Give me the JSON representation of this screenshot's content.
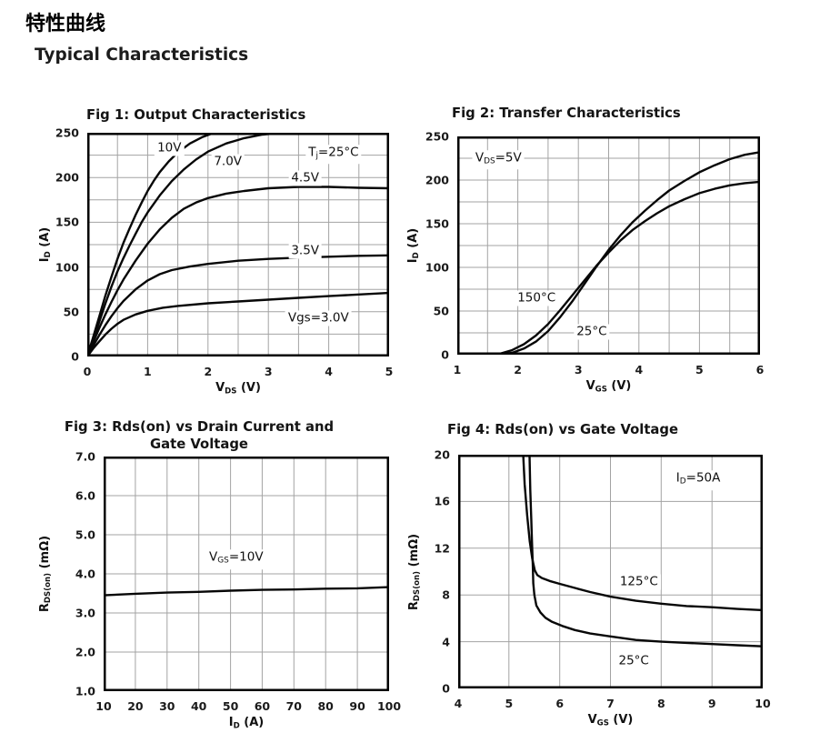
{
  "header": {
    "title_cn": "特性曲线",
    "section_title": "Typical Characteristics"
  },
  "chart_data": [
    {
      "name": "fig1-output-characteristics",
      "type": "line",
      "title": "Fig 1: Output Characteristics",
      "xlabel": [
        {
          "t": "V"
        },
        {
          "t": "DS",
          "sub": true
        },
        {
          "t": " (V)"
        }
      ],
      "ylabel": [
        {
          "t": "I"
        },
        {
          "t": "D",
          "sub": true
        },
        {
          "t": " (A)"
        }
      ],
      "xlim": [
        0,
        5
      ],
      "ylim": [
        0,
        250
      ],
      "grid_dx": 0.5,
      "grid_dy": 25,
      "grid": "on",
      "legend": "none",
      "xticks": [
        {
          "v": 0,
          "label": "0"
        },
        {
          "v": 1,
          "label": "1"
        },
        {
          "v": 2,
          "label": "2"
        },
        {
          "v": 3,
          "label": "3"
        },
        {
          "v": 4,
          "label": "4"
        },
        {
          "v": 5,
          "label": "5"
        }
      ],
      "yticks": [
        {
          "v": 0,
          "label": "0"
        },
        {
          "v": 50,
          "label": "50"
        },
        {
          "v": 100,
          "label": "100"
        },
        {
          "v": 150,
          "label": "150"
        },
        {
          "v": 200,
          "label": "200"
        },
        {
          "v": 250,
          "label": "250"
        }
      ],
      "annotations": [
        {
          "name": "tj-condition",
          "parts": [
            {
              "t": "T"
            },
            {
              "t": "j",
              "sub": true
            },
            {
              "t": "=25°C"
            }
          ],
          "ax": 4.08,
          "ay": 226
        }
      ],
      "series": [
        {
          "name": "vgs-10v",
          "label": {
            "parts": [
              {
                "t": "10V"
              }
            ],
            "ax": 1.36,
            "ay": 233
          },
          "x": [
            0,
            0.1,
            0.2,
            0.3,
            0.4,
            0.5,
            0.6,
            0.7,
            0.8,
            0.9,
            1.0,
            1.1,
            1.2,
            1.35,
            1.5,
            1.7,
            1.9,
            2.1,
            2.3
          ],
          "y": [
            0,
            22,
            45,
            68,
            89,
            109,
            127,
            143,
            158,
            172,
            185,
            196,
            206,
            218,
            228,
            238,
            245,
            250,
            256
          ]
        },
        {
          "name": "vgs-7v",
          "label": {
            "parts": [
              {
                "t": "7.0V"
              }
            ],
            "ax": 2.33,
            "ay": 218
          },
          "x": [
            0,
            0.1,
            0.2,
            0.3,
            0.4,
            0.5,
            0.6,
            0.7,
            0.8,
            0.9,
            1.0,
            1.2,
            1.4,
            1.6,
            1.8,
            2.0,
            2.3,
            2.6,
            2.9,
            3.2,
            3.45
          ],
          "y": [
            0,
            19,
            39,
            59,
            78,
            95,
            110,
            124,
            137,
            150,
            161,
            180,
            196,
            209,
            220,
            229,
            238,
            244,
            248,
            250,
            253
          ]
        },
        {
          "name": "vgs-4p5v",
          "label": {
            "parts": [
              {
                "t": "4.5V"
              }
            ],
            "ax": 3.61,
            "ay": 199
          },
          "x": [
            0,
            0.1,
            0.2,
            0.3,
            0.4,
            0.5,
            0.6,
            0.8,
            1.0,
            1.2,
            1.4,
            1.6,
            1.8,
            2.0,
            2.3,
            2.6,
            3.0,
            3.5,
            4.0,
            4.5,
            5.0
          ],
          "y": [
            0,
            16,
            32,
            47,
            61,
            74,
            86,
            107,
            126,
            142,
            155,
            165,
            172,
            177,
            182,
            185,
            188,
            189.5,
            189.5,
            188.5,
            188
          ]
        },
        {
          "name": "vgs-3p5v",
          "label": {
            "parts": [
              {
                "t": "3.5V"
              }
            ],
            "ax": 3.61,
            "ay": 118
          },
          "x": [
            0,
            0.1,
            0.2,
            0.3,
            0.4,
            0.5,
            0.6,
            0.8,
            1.0,
            1.2,
            1.4,
            1.7,
            2.0,
            2.5,
            3.0,
            3.5,
            4.0,
            4.5,
            5.0
          ],
          "y": [
            0,
            12,
            24,
            35,
            45,
            54,
            62,
            75,
            85,
            92,
            96.5,
            100.5,
            103.5,
            107,
            109,
            110.5,
            111.5,
            112.5,
            113
          ]
        },
        {
          "name": "vgs-3v",
          "label": {
            "parts": [
              {
                "t": "Vgs=3.0V"
              }
            ],
            "ax": 3.83,
            "ay": 43
          },
          "x": [
            0,
            0.1,
            0.2,
            0.3,
            0.4,
            0.5,
            0.6,
            0.8,
            1.0,
            1.25,
            1.5,
            2.0,
            2.5,
            3.0,
            3.5,
            4.0,
            4.5,
            5.0
          ],
          "y": [
            0,
            9,
            17,
            24.5,
            31,
            36.5,
            41,
            47,
            51,
            54.5,
            56.5,
            59.5,
            61.5,
            63.5,
            65.5,
            67.5,
            69.3,
            71
          ]
        }
      ]
    },
    {
      "name": "fig2-transfer-characteristics",
      "type": "line",
      "title": "Fig 2: Transfer Characteristics",
      "xlabel": [
        {
          "t": "V"
        },
        {
          "t": "GS",
          "sub": true
        },
        {
          "t": " (V)"
        }
      ],
      "ylabel": [
        {
          "t": "I"
        },
        {
          "t": "D",
          "sub": true
        },
        {
          "t": " (A)"
        }
      ],
      "xlim": [
        1,
        6
      ],
      "ylim": [
        0,
        250
      ],
      "grid_dx": 0.5,
      "grid_dy": 25,
      "grid": "on",
      "legend": "none",
      "xticks": [
        {
          "v": 1,
          "label": "1"
        },
        {
          "v": 2,
          "label": "2"
        },
        {
          "v": 3,
          "label": "3"
        },
        {
          "v": 4,
          "label": "4"
        },
        {
          "v": 5,
          "label": "5"
        },
        {
          "v": 6,
          "label": "6"
        }
      ],
      "yticks": [
        {
          "v": 0,
          "label": "0"
        },
        {
          "v": 50,
          "label": "50"
        },
        {
          "v": 100,
          "label": "100"
        },
        {
          "v": 150,
          "label": "150"
        },
        {
          "v": 200,
          "label": "200"
        },
        {
          "v": 250,
          "label": "250"
        }
      ],
      "annotations": [
        {
          "name": "vds-condition",
          "parts": [
            {
              "t": "V"
            },
            {
              "t": "DS",
              "sub": true
            },
            {
              "t": "=5V"
            }
          ],
          "ax": 1.68,
          "ay": 223
        }
      ],
      "series": [
        {
          "name": "150c",
          "label": {
            "parts": [
              {
                "t": "150°C"
              }
            ],
            "ax": 2.31,
            "ay": 65
          },
          "x": [
            1,
            1.5,
            1.7,
            1.9,
            2.1,
            2.3,
            2.5,
            2.7,
            2.9,
            3.1,
            3.3,
            3.5,
            3.7,
            3.9,
            4.1,
            4.3,
            4.5,
            4.75,
            5.0,
            5.25,
            5.5,
            5.75,
            6.0
          ],
          "y": [
            0.5,
            0.5,
            1,
            5,
            12,
            22,
            35,
            51,
            68,
            85,
            102,
            117,
            131,
            143,
            153,
            162,
            170,
            178,
            185,
            190,
            194,
            196.5,
            198
          ]
        },
        {
          "name": "25c",
          "label": {
            "parts": [
              {
                "t": "25°C"
              }
            ],
            "ax": 3.22,
            "ay": 26
          },
          "x": [
            1,
            1.6,
            1.9,
            2.1,
            2.3,
            2.5,
            2.7,
            2.9,
            3.1,
            3.3,
            3.5,
            3.7,
            3.9,
            4.1,
            4.3,
            4.5,
            4.75,
            5.0,
            5.25,
            5.5,
            5.75,
            6.0
          ],
          "y": [
            0.3,
            0.3,
            2,
            7,
            15,
            27,
            43,
            61,
            81,
            101,
            120,
            137,
            152,
            165,
            177,
            188,
            199,
            209,
            217,
            224,
            229,
            232
          ]
        }
      ]
    },
    {
      "name": "fig3-rdson-vs-drain-current",
      "type": "line",
      "title": "Fig 3: Rds(on) vs Drain Current and Gate Voltage",
      "title_lines": [
        "Fig 3: Rds(on) vs Drain Current and",
        "Gate Voltage"
      ],
      "xlabel": [
        {
          "t": "I"
        },
        {
          "t": "D",
          "sub": true
        },
        {
          "t": " (A)"
        }
      ],
      "ylabel": [
        {
          "t": "R"
        },
        {
          "t": "DS(on)",
          "sub": true
        },
        {
          "t": " (mΩ)"
        }
      ],
      "xlim": [
        10,
        100
      ],
      "ylim": [
        1,
        7
      ],
      "grid_dx": 10,
      "grid_dy": 1,
      "grid": "on",
      "legend": "none",
      "xticks": [
        {
          "v": 10,
          "label": "10"
        },
        {
          "v": 20,
          "label": "20"
        },
        {
          "v": 30,
          "label": "30"
        },
        {
          "v": 40,
          "label": "40"
        },
        {
          "v": 50,
          "label": "50"
        },
        {
          "v": 60,
          "label": "60"
        },
        {
          "v": 70,
          "label": "70"
        },
        {
          "v": 80,
          "label": "80"
        },
        {
          "v": 90,
          "label": "90"
        },
        {
          "v": 100,
          "label": "100"
        }
      ],
      "yticks": [
        {
          "v": 1,
          "label": "1.0"
        },
        {
          "v": 2,
          "label": "2.0"
        },
        {
          "v": 3,
          "label": "3.0"
        },
        {
          "v": 4,
          "label": "4.0"
        },
        {
          "v": 5,
          "label": "5.0"
        },
        {
          "v": 6,
          "label": "6.0"
        },
        {
          "v": 7,
          "label": "7.0"
        }
      ],
      "annotations": [
        {
          "name": "vgs-condition",
          "parts": [
            {
              "t": "V"
            },
            {
              "t": "GS",
              "sub": true
            },
            {
              "t": "=10V"
            }
          ],
          "ax": 51.8,
          "ay": 4.37
        }
      ],
      "series": [
        {
          "name": "vgs-10v",
          "x": [
            10,
            20,
            30,
            40,
            50,
            60,
            70,
            80,
            90,
            100
          ],
          "y": [
            3.45,
            3.49,
            3.52,
            3.54,
            3.57,
            3.59,
            3.6,
            3.62,
            3.63,
            3.66
          ]
        }
      ]
    },
    {
      "name": "fig4-rdson-vs-gate-voltage",
      "type": "line",
      "title": "Fig 4: Rds(on) vs Gate Voltage",
      "xlabel": [
        {
          "t": "V"
        },
        {
          "t": "GS",
          "sub": true
        },
        {
          "t": " (V)"
        }
      ],
      "ylabel": [
        {
          "t": "R"
        },
        {
          "t": "DS(on)",
          "sub": true
        },
        {
          "t": " (mΩ)"
        }
      ],
      "xlim": [
        4,
        10
      ],
      "ylim": [
        0,
        20
      ],
      "grid_dx": 1,
      "grid_dy": 4,
      "grid": "on",
      "legend": "none",
      "xticks": [
        {
          "v": 4,
          "label": "4"
        },
        {
          "v": 5,
          "label": "5"
        },
        {
          "v": 6,
          "label": "6"
        },
        {
          "v": 7,
          "label": "7"
        },
        {
          "v": 8,
          "label": "8"
        },
        {
          "v": 9,
          "label": "9"
        },
        {
          "v": 10,
          "label": "10"
        }
      ],
      "yticks": [
        {
          "v": 0,
          "label": "0"
        },
        {
          "v": 4,
          "label": "4"
        },
        {
          "v": 8,
          "label": "8"
        },
        {
          "v": 12,
          "label": "12"
        },
        {
          "v": 16,
          "label": "16"
        },
        {
          "v": 20,
          "label": "20"
        }
      ],
      "annotations": [
        {
          "name": "id-condition",
          "parts": [
            {
              "t": "I"
            },
            {
              "t": "D",
              "sub": true
            },
            {
              "t": "=50A"
            }
          ],
          "ax": 8.73,
          "ay": 17.8
        }
      ],
      "series": [
        {
          "name": "125c",
          "label": {
            "parts": [
              {
                "t": "125°C"
              }
            ],
            "ax": 7.56,
            "ay": 9.1
          },
          "x": [
            5.27,
            5.31,
            5.36,
            5.41,
            5.46,
            5.51,
            5.56,
            5.65,
            5.8,
            6.0,
            6.3,
            6.6,
            7.0,
            7.5,
            8.0,
            8.5,
            9.0,
            9.5,
            10.0
          ],
          "y": [
            21,
            17.5,
            14.8,
            12.6,
            11.1,
            10.1,
            9.7,
            9.45,
            9.2,
            8.95,
            8.6,
            8.25,
            7.85,
            7.5,
            7.25,
            7.05,
            6.95,
            6.8,
            6.7
          ]
        },
        {
          "name": "25c",
          "label": {
            "parts": [
              {
                "t": "25°C"
              }
            ],
            "ax": 7.46,
            "ay": 2.33
          },
          "x": [
            5.4,
            5.42,
            5.44,
            5.455,
            5.47,
            5.48,
            5.5,
            5.54,
            5.62,
            5.72,
            5.85,
            6.05,
            6.3,
            6.6,
            7.0,
            7.5,
            8.0,
            8.5,
            9.0,
            9.5,
            10.0
          ],
          "y": [
            21,
            17,
            14.5,
            12.5,
            10.5,
            9.0,
            8.0,
            7.1,
            6.5,
            6.05,
            5.7,
            5.35,
            5.0,
            4.7,
            4.45,
            4.15,
            4.0,
            3.9,
            3.8,
            3.7,
            3.6
          ]
        }
      ]
    }
  ]
}
